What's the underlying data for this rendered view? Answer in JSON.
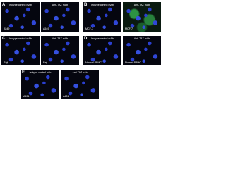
{
  "panels": [
    {
      "letter": "A",
      "images": [
        {
          "label": "Isotype control mAb",
          "cell": "A549"
        },
        {
          "label": "Anti-TAZ mAb",
          "cell": "A549"
        }
      ]
    },
    {
      "letter": "B",
      "images": [
        {
          "label": "Isotype control mAb",
          "cell": "MCF-7"
        },
        {
          "label": "Anti-TAZ mAb",
          "cell": "MCF-7"
        }
      ]
    },
    {
      "letter": "C",
      "images": [
        {
          "label": "Isotype control mAb",
          "cell": "Raji"
        },
        {
          "label": "Anti-TAZ mAb",
          "cell": "Raji"
        }
      ]
    },
    {
      "letter": "D",
      "images": [
        {
          "label": "Isotype control mAb",
          "cell": "Normal PBMC"
        },
        {
          "label": "Anti-TAZ mAb",
          "cell": "Normal PBMC"
        }
      ]
    },
    {
      "letter": "E",
      "images": [
        {
          "label": "Isotype control pAb",
          "cell": "A431"
        },
        {
          "label": "Anti-TAZ pAb",
          "cell": "A431"
        }
      ]
    }
  ]
}
